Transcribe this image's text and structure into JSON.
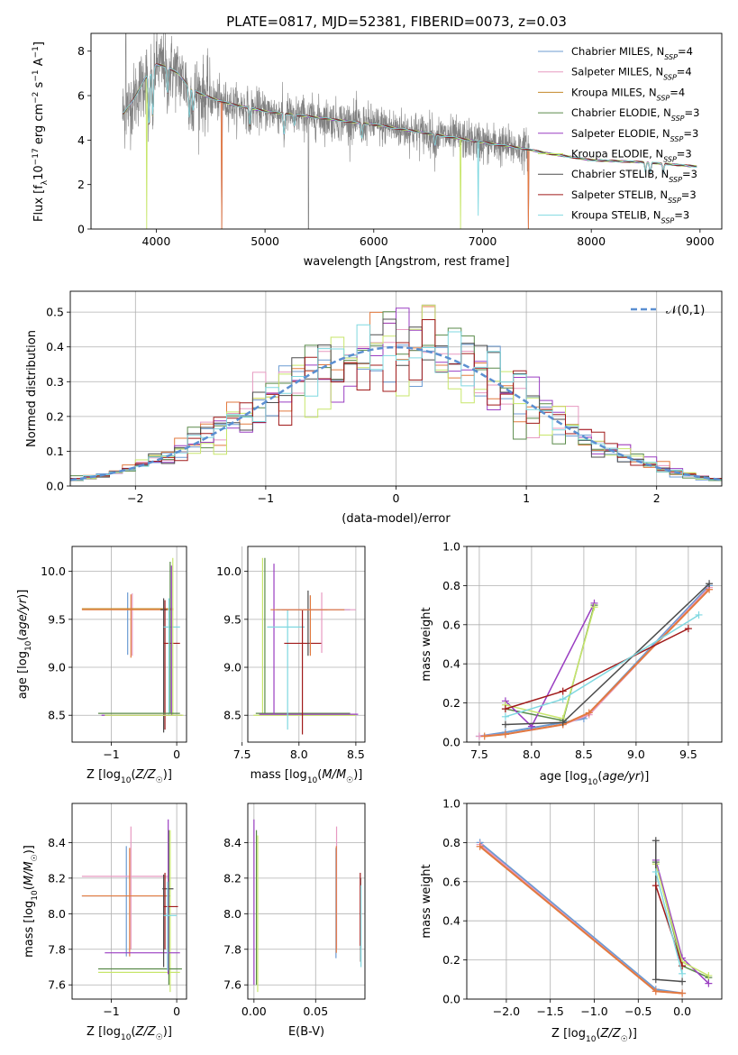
{
  "colors": {
    "Chabrier MILES": "#6c9bd2",
    "Salpeter MILES": "#e79ac1",
    "Kroupa MILES": "#c4882a",
    "Chabrier ELODIE": "#5a8a4a",
    "Salpeter ELODIE": "#9a3ec2",
    "Kroupa ELODIE": "#c7e66a",
    "Chabrier STELIB": "#4d4d4d",
    "Salpeter STELIB": "#a01a1a",
    "Kroupa STELIB": "#7fd8e0",
    "orange": "#e27a3f",
    "data": "#808080",
    "normal": "#5b8fd1"
  },
  "chart_data": [
    {
      "id": "spectrum",
      "type": "line",
      "title": "PLATE=0817, MJD=52381, FIBERID=0073, z=0.03",
      "xlabel": "wavelength [Angstrom, rest frame]",
      "ylabel": "Flux [f_λ 10^-17 erg cm^-2 s^-1 A^-1]",
      "xlim": [
        3400,
        9200
      ],
      "ylim": [
        0,
        8.8
      ],
      "xticks": [
        "4000",
        "5000",
        "6000",
        "7000",
        "8000",
        "9000"
      ],
      "yticks": [
        "0",
        "2",
        "4",
        "6",
        "8"
      ],
      "legend_position": "top-right",
      "legend": [
        {
          "name": "Chabrier MILES, N_SSP=4",
          "base": "Chabrier MILES, N",
          "sub": "SSP",
          "tail": "=4"
        },
        {
          "name": "Salpeter MILES, N_SSP=4",
          "base": "Salpeter MILES, N",
          "sub": "SSP",
          "tail": "=4"
        },
        {
          "name": "Kroupa MILES, N_SSP=4",
          "base": "Kroupa MILES, N",
          "sub": "SSP",
          "tail": "=4"
        },
        {
          "name": "Chabrier ELODIE, N_SSP=3",
          "base": "Chabrier ELODIE, N",
          "sub": "SSP",
          "tail": "=3"
        },
        {
          "name": "Salpeter ELODIE, N_SSP=3",
          "base": "Salpeter ELODIE, N",
          "sub": "SSP",
          "tail": "=3"
        },
        {
          "name": "Kroupa ELODIE, N_SSP=3",
          "base": "Kroupa ELODIE, N",
          "sub": "SSP",
          "tail": "=3"
        },
        {
          "name": "Chabrier STELIB, N_SSP=3",
          "base": "Chabrier STELIB, N",
          "sub": "SSP",
          "tail": "=3"
        },
        {
          "name": "Salpeter STELIB, N_SSP=3",
          "base": "Salpeter STELIB, N",
          "sub": "SSP",
          "tail": "=3"
        },
        {
          "name": "Kroupa STELIB, N_SSP=3",
          "base": "Kroupa STELIB, N",
          "sub": "SSP",
          "tail": "=3"
        }
      ],
      "continuum": {
        "x": [
          3700,
          3800,
          3900,
          4000,
          4100,
          4200,
          4300,
          4400,
          4500,
          4700,
          5000,
          5500,
          6000,
          6500,
          7000,
          7400,
          7600,
          8000,
          8500,
          9000
        ],
        "y": [
          5.2,
          5.9,
          6.8,
          7.4,
          7.3,
          7.0,
          6.4,
          6.1,
          5.9,
          5.6,
          5.3,
          5.0,
          4.7,
          4.3,
          3.9,
          3.6,
          3.4,
          3.1,
          3.0,
          2.8
        ]
      },
      "absorption_lines": [
        {
          "x": 3933,
          "depth": 2.5
        },
        {
          "x": 3968,
          "depth": 2.2
        },
        {
          "x": 4102,
          "depth": 1.2
        },
        {
          "x": 4304,
          "depth": 1.4
        },
        {
          "x": 4340,
          "depth": 1.0
        },
        {
          "x": 4861,
          "depth": 0.8
        },
        {
          "x": 5175,
          "depth": 1.0
        },
        {
          "x": 5270,
          "depth": 0.5
        },
        {
          "x": 5890,
          "depth": 0.7
        },
        {
          "x": 6563,
          "depth": 0.5
        },
        {
          "x": 8498,
          "depth": 0.4
        },
        {
          "x": 8542,
          "depth": 0.5
        },
        {
          "x": 8662,
          "depth": 0.4
        }
      ],
      "dropouts": [
        {
          "series": "orange",
          "x": 4600
        },
        {
          "series": "Kroupa ELODIE",
          "x": 3910
        },
        {
          "series": "Kroupa ELODIE",
          "x": 6800
        },
        {
          "series": "Kroupa STELIB",
          "x": 6960
        },
        {
          "series": "orange",
          "x": 7420
        }
      ],
      "data_range": [
        3690,
        7430
      ],
      "model_range": [
        3690,
        8970
      ]
    },
    {
      "id": "residuals",
      "type": "histogram",
      "xlabel": "(data-model)/error",
      "ylabel": "Normed distribution",
      "xlim": [
        -2.5,
        2.5
      ],
      "ylim": [
        0,
        0.56
      ],
      "xticks": [
        "−2",
        "−1",
        "0",
        "1",
        "2"
      ],
      "yticks": [
        "0.0",
        "0.1",
        "0.2",
        "0.3",
        "0.4",
        "0.5"
      ],
      "legend": "𝒩(0,1)",
      "legend_position": "top-right",
      "bin_width": 0.1,
      "series_count": 9
    },
    {
      "id": "age-vs-Z",
      "type": "scatter",
      "xlabel": "Z [log10(Z/Z☉)]",
      "ylabel": "age [log10(age/yr)]",
      "xlim": [
        -1.6,
        0.15
      ],
      "ylim": [
        8.22,
        10.26
      ],
      "xticks": [
        "−1",
        "0"
      ],
      "yticks": [
        "8.5",
        "9.0",
        "9.5",
        "10.0"
      ]
    },
    {
      "id": "age-vs-mass",
      "type": "scatter",
      "xlabel": "mass [log10(M/M☉)]",
      "ylabel": "",
      "xlim": [
        7.55,
        8.58
      ],
      "ylim": [
        8.22,
        10.26
      ],
      "xticks": [
        "7.5",
        "8.0",
        "8.5"
      ],
      "yticks": [
        "8.5",
        "9.0",
        "9.5",
        "10.0"
      ]
    },
    {
      "id": "massweight-vs-age",
      "type": "line",
      "xlabel": "age [log10(age/yr)]",
      "ylabel": "mass weight",
      "xlim": [
        7.38,
        9.82
      ],
      "ylim": [
        0,
        1
      ],
      "xticks": [
        "7.5",
        "8.0",
        "8.5",
        "9.0",
        "9.5"
      ],
      "yticks": [
        "0.0",
        "0.2",
        "0.4",
        "0.6",
        "0.8",
        "1.0"
      ],
      "series": [
        {
          "name": "Chabrier MILES",
          "x": [
            7.5,
            7.75,
            8.3,
            8.5,
            9.7
          ],
          "y": [
            0.03,
            0.05,
            0.1,
            0.12,
            0.8
          ]
        },
        {
          "name": "Salpeter MILES",
          "x": [
            7.5,
            7.75,
            8.3,
            8.55,
            9.7
          ],
          "y": [
            0.03,
            0.04,
            0.09,
            0.14,
            0.79
          ]
        },
        {
          "name": "Kroupa MILES",
          "x": [
            7.55,
            7.75,
            8.3,
            8.55,
            9.7
          ],
          "y": [
            0.03,
            0.04,
            0.09,
            0.15,
            0.78
          ]
        },
        {
          "name": "Chabrier ELODIE",
          "x": [
            7.75,
            8.3,
            8.6
          ],
          "y": [
            0.17,
            0.11,
            0.7
          ]
        },
        {
          "name": "Salpeter ELODIE",
          "x": [
            7.75,
            8.0,
            8.6
          ],
          "y": [
            0.21,
            0.08,
            0.71
          ]
        },
        {
          "name": "Kroupa ELODIE",
          "x": [
            7.75,
            8.3,
            8.6
          ],
          "y": [
            0.19,
            0.12,
            0.69
          ]
        },
        {
          "name": "Chabrier STELIB",
          "x": [
            7.75,
            8.3,
            9.7
          ],
          "y": [
            0.09,
            0.1,
            0.81
          ]
        },
        {
          "name": "Salpeter STELIB",
          "x": [
            7.75,
            8.3,
            9.5
          ],
          "y": [
            0.17,
            0.26,
            0.58
          ]
        },
        {
          "name": "Kroupa STELIB",
          "x": [
            7.75,
            8.3,
            9.6
          ],
          "y": [
            0.13,
            0.22,
            0.65
          ]
        }
      ]
    },
    {
      "id": "mass-vs-Z",
      "type": "scatter",
      "xlabel": "Z [log10(Z/Z☉)]",
      "ylabel": "mass [log10(M/M☉)]",
      "xlim": [
        -1.6,
        0.15
      ],
      "ylim": [
        7.52,
        8.62
      ],
      "xticks": [
        "−1",
        "0"
      ],
      "yticks": [
        "7.6",
        "7.8",
        "8.0",
        "8.2",
        "8.4"
      ]
    },
    {
      "id": "mass-vs-EBV",
      "type": "scatter",
      "xlabel": "E(B-V)",
      "ylabel": "",
      "xlim": [
        -0.005,
        0.09
      ],
      "ylim": [
        7.52,
        8.62
      ],
      "xticks": [
        "0.00",
        "0.05"
      ],
      "yticks": [
        "7.6",
        "7.8",
        "8.0",
        "8.2",
        "8.4"
      ]
    },
    {
      "id": "massweight-vs-Z",
      "type": "line",
      "xlabel": "Z [log10(Z/Z☉)]",
      "ylabel": "mass weight",
      "xlim": [
        -2.45,
        0.45
      ],
      "ylim": [
        0,
        1
      ],
      "xticks": [
        "−2.0",
        "−1.5",
        "−1.0",
        "−0.5",
        "0.0"
      ],
      "yticks": [
        "0.0",
        "0.2",
        "0.4",
        "0.6",
        "0.8",
        "1.0"
      ],
      "series": [
        {
          "name": "Chabrier MILES",
          "x": [
            -2.3,
            -0.3,
            0.0
          ],
          "y": [
            0.8,
            0.05,
            0.03
          ]
        },
        {
          "name": "Salpeter MILES",
          "x": [
            -2.3,
            -0.3,
            0.0
          ],
          "y": [
            0.79,
            0.04,
            0.03
          ]
        },
        {
          "name": "Kroupa MILES",
          "x": [
            -2.3,
            -0.3,
            0.0
          ],
          "y": [
            0.78,
            0.04,
            0.03
          ]
        },
        {
          "name": "Chabrier ELODIE",
          "x": [
            -0.3,
            0.0,
            0.3
          ],
          "y": [
            0.7,
            0.17,
            0.11
          ]
        },
        {
          "name": "Salpeter ELODIE",
          "x": [
            -0.3,
            0.0,
            0.3
          ],
          "y": [
            0.71,
            0.21,
            0.08
          ]
        },
        {
          "name": "Kroupa ELODIE",
          "x": [
            -0.3,
            0.0,
            0.3
          ],
          "y": [
            0.69,
            0.19,
            0.12
          ]
        },
        {
          "name": "Chabrier STELIB",
          "x": [
            -0.3,
            -0.3,
            0.0
          ],
          "y": [
            0.81,
            0.1,
            0.09
          ]
        },
        {
          "name": "Salpeter STELIB",
          "x": [
            -0.3,
            0.0
          ],
          "y": [
            0.58,
            0.17
          ]
        },
        {
          "name": "Kroupa STELIB",
          "x": [
            -0.3,
            0.0
          ],
          "y": [
            0.65,
            0.13
          ]
        }
      ]
    }
  ],
  "errorbars": {
    "age_Z": [
      {
        "s": "Chabrier MILES",
        "x": -0.75,
        "y": 9.6,
        "xe": 0.0,
        "ye": [
          9.13,
          9.78
        ]
      },
      {
        "s": "Salpeter MILES",
        "x": -0.68,
        "y": 9.6,
        "xe": 0.0,
        "ye": [
          9.12,
          9.77
        ]
      },
      {
        "s": "Kroupa MILES",
        "x": -1.45,
        "y": 9.61,
        "xe": [
          -1.45,
          -0.05
        ],
        "ye": [
          9.61,
          9.61
        ]
      },
      {
        "s": "orange",
        "x": -0.7,
        "y": 9.6,
        "xe": [
          -1.45,
          -0.05
        ],
        "ye": [
          9.1,
          9.76
        ]
      },
      {
        "s": "Chabrier STELIB",
        "x": -0.2,
        "y": 9.6,
        "xe": [
          -0.25,
          -0.15
        ],
        "ye": [
          8.32,
          9.72
        ]
      },
      {
        "s": "Salpeter STELIB",
        "x": -0.18,
        "y": 9.25,
        "xe": [
          -0.2,
          0.05
        ],
        "ye": [
          8.35,
          9.7
        ]
      },
      {
        "s": "Kroupa STELIB",
        "x": -0.12,
        "y": 9.42,
        "xe": [
          -0.2,
          0.05
        ],
        "ye": [
          8.5,
          9.72
        ]
      },
      {
        "s": "Salpeter ELODIE",
        "x": -0.08,
        "y": 8.5,
        "xe": [
          -1.15,
          0.08
        ],
        "ye": [
          8.5,
          10.06
        ]
      },
      {
        "s": "Kroupa ELODIE",
        "x": -0.06,
        "y": 8.5,
        "xe": [
          -1.1,
          0.1
        ],
        "ye": [
          8.5,
          10.14
        ]
      },
      {
        "s": "Chabrier ELODIE",
        "x": -0.1,
        "y": 8.52,
        "xe": [
          -1.2,
          0.05
        ],
        "ye": [
          8.52,
          10.1
        ]
      }
    ],
    "age_mass": [
      {
        "s": "Kroupa ELODIE",
        "x": 7.68,
        "y": 8.5,
        "xe": [
          7.6,
          8.5
        ],
        "ye": [
          8.5,
          10.14
        ]
      },
      {
        "s": "Chabrier ELODIE",
        "x": 7.7,
        "y": 8.52,
        "xe": [
          7.62,
          8.45
        ],
        "ye": [
          8.52,
          10.14
        ]
      },
      {
        "s": "Salpeter ELODIE",
        "x": 7.78,
        "y": 8.51,
        "xe": [
          7.65,
          8.52
        ],
        "ye": [
          8.51,
          10.08
        ]
      },
      {
        "s": "Kroupa STELIB",
        "x": 7.9,
        "y": 9.42,
        "xe": [
          7.72,
          8.05
        ],
        "ye": [
          8.35,
          9.6
        ]
      },
      {
        "s": "Salpeter STELIB",
        "x": 8.03,
        "y": 9.25,
        "xe": [
          7.87,
          8.2
        ],
        "ye": [
          8.3,
          9.6
        ]
      },
      {
        "s": "Chabrier STELIB",
        "x": 8.08,
        "y": 9.6,
        "xe": [
          7.85,
          8.25
        ],
        "ye": [
          9.12,
          9.8
        ]
      },
      {
        "s": "Chabrier MILES",
        "x": 8.1,
        "y": 9.6,
        "xe": [
          7.8,
          8.45
        ],
        "ye": [
          9.15,
          9.75
        ]
      },
      {
        "s": "Salpeter MILES",
        "x": 8.2,
        "y": 9.6,
        "xe": [
          7.85,
          8.5
        ],
        "ye": [
          9.15,
          9.78
        ]
      },
      {
        "s": "orange",
        "x": 8.1,
        "y": 9.6,
        "xe": [
          7.75,
          8.4
        ],
        "ye": [
          9.12,
          9.75
        ]
      }
    ],
    "mass_Z": [
      {
        "s": "Chabrier MILES",
        "x": -0.77,
        "y": 8.1,
        "xe": [
          -1.45,
          -0.1
        ],
        "ye": [
          7.76,
          8.38
        ]
      },
      {
        "s": "Salpeter MILES",
        "x": -0.7,
        "y": 8.21,
        "xe": [
          -1.45,
          -0.12
        ],
        "ye": [
          7.8,
          8.49
        ]
      },
      {
        "s": "orange",
        "x": -0.72,
        "y": 8.1,
        "xe": [
          -1.45,
          -0.15
        ],
        "ye": [
          7.76,
          8.37
        ]
      },
      {
        "s": "Kroupa ELODIE",
        "x": -0.1,
        "y": 7.67,
        "xe": [
          -1.2,
          0.05
        ],
        "ye": [
          7.56,
          8.47
        ]
      },
      {
        "s": "Chabrier ELODIE",
        "x": -0.12,
        "y": 7.69,
        "xe": [
          -1.2,
          0.08
        ],
        "ye": [
          7.6,
          8.47
        ]
      },
      {
        "s": "Salpeter ELODIE",
        "x": -0.13,
        "y": 7.78,
        "xe": [
          -1.1,
          0.05
        ],
        "ye": [
          7.66,
          8.53
        ]
      },
      {
        "s": "Chabrier STELIB",
        "x": -0.2,
        "y": 8.14,
        "xe": [
          -0.22,
          -0.05
        ],
        "ye": [
          7.7,
          8.22
        ]
      },
      {
        "s": "Salpeter STELIB",
        "x": -0.18,
        "y": 8.04,
        "xe": [
          -0.2,
          0.02
        ],
        "ye": [
          7.8,
          8.23
        ]
      },
      {
        "s": "Kroupa STELIB",
        "x": -0.14,
        "y": 7.99,
        "xe": [
          -0.2,
          0.0
        ],
        "ye": [
          7.68,
          8.18
        ]
      }
    ],
    "mass_ebv": [
      {
        "s": "Salpeter ELODIE",
        "x": 0.0,
        "y": 7.78,
        "xe": 0.0,
        "ye": [
          7.6,
          8.53
        ]
      },
      {
        "s": "Chabrier ELODIE",
        "x": 0.002,
        "y": 7.69,
        "xe": 0.0,
        "ye": [
          7.6,
          8.47
        ]
      },
      {
        "s": "Kroupa ELODIE",
        "x": 0.003,
        "y": 7.67,
        "xe": 0.0,
        "ye": [
          7.56,
          8.44
        ]
      },
      {
        "s": "Chabrier MILES",
        "x": 0.0665,
        "y": 8.1,
        "xe": 0.0,
        "ye": [
          7.75,
          8.37
        ]
      },
      {
        "s": "Salpeter MILES",
        "x": 0.067,
        "y": 8.21,
        "xe": 0.0,
        "ye": [
          7.8,
          8.49
        ]
      },
      {
        "s": "orange",
        "x": 0.0668,
        "y": 8.1,
        "xe": 0.0,
        "ye": [
          7.78,
          8.38
        ]
      },
      {
        "s": "Chabrier STELIB",
        "x": 0.0865,
        "y": 8.14,
        "xe": 0.0,
        "ye": [
          7.73,
          8.2
        ]
      },
      {
        "s": "Salpeter STELIB",
        "x": 0.0862,
        "y": 8.04,
        "xe": 0.0,
        "ye": [
          7.82,
          8.23
        ]
      },
      {
        "s": "Kroupa STELIB",
        "x": 0.0868,
        "y": 7.99,
        "xe": 0.0,
        "ye": [
          7.7,
          8.16
        ]
      }
    ]
  }
}
